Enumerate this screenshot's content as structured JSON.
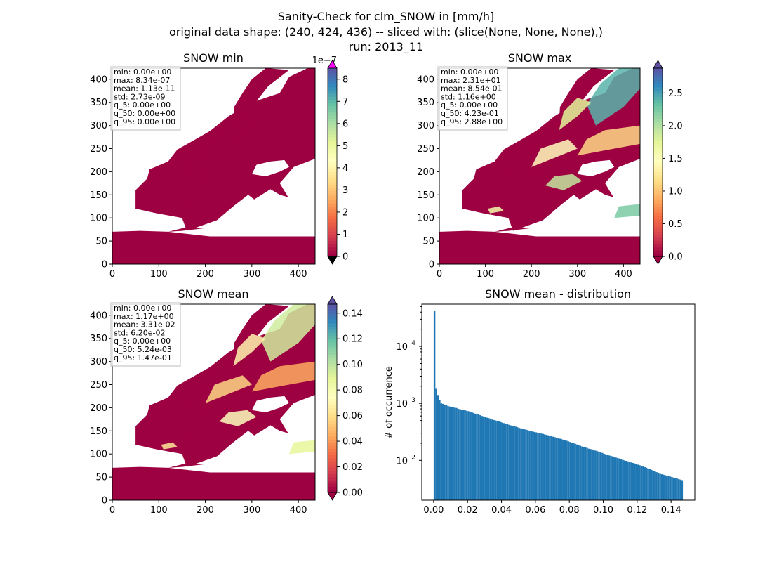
{
  "title_lines": [
    "Sanity-Check for clm_SNOW in [mm/h]",
    "original data shape: (240, 424, 436) -- sliced with: (slice(None, None, None),)",
    "run: 2013_11"
  ],
  "colors": {
    "land_low": "#9e0142",
    "spectral_r": [
      "#9e0142",
      "#d53e4f",
      "#f46d43",
      "#fdae61",
      "#fee08b",
      "#ffffbf",
      "#e6f598",
      "#abdda4",
      "#66c2a5",
      "#3288bd",
      "#5e4fa2"
    ],
    "hist_bar": "#1f77b4",
    "over_min": "#ff00ff"
  },
  "chart_data": [
    {
      "type": "heatmap",
      "title": "SNOW min",
      "xlim": [
        0,
        436
      ],
      "ylim": [
        0,
        424
      ],
      "xticks": [
        "0",
        "100",
        "200",
        "300",
        "400"
      ],
      "yticks": [
        "0",
        "50",
        "100",
        "150",
        "200",
        "250",
        "300",
        "350",
        "400"
      ],
      "colorbar": {
        "min": 0,
        "max": 8.5,
        "ticks": [
          "0",
          "1",
          "2",
          "3",
          "4",
          "5",
          "6",
          "7",
          "8"
        ],
        "offset_label": "1e−7",
        "extend": "both"
      },
      "stats": [
        "min: 0.00e+00",
        "max: 8.34e-07",
        "mean: 1.13e-11",
        "std: 2.73e-09",
        "q_5: 0.00e+00",
        "q_50: 0.00e+00",
        "q_95: 0.00e+00"
      ]
    },
    {
      "type": "heatmap",
      "title": "SNOW max",
      "xlim": [
        0,
        436
      ],
      "ylim": [
        0,
        424
      ],
      "xticks": [
        "0",
        "100",
        "200",
        "300",
        "400"
      ],
      "yticks": [
        "0",
        "50",
        "100",
        "150",
        "200",
        "250",
        "300",
        "350",
        "400"
      ],
      "colorbar": {
        "min": 0,
        "max": 2.88,
        "ticks": [
          "0.0",
          "0.5",
          "1.0",
          "1.5",
          "2.0",
          "2.5"
        ],
        "offset_label": "",
        "extend": "both"
      },
      "stats": [
        "min: 0.00e+00",
        "max: 2.31e+01",
        "mean: 8.54e-01",
        "std: 1.16e+00",
        "q_5: 0.00e+00",
        "q_50: 4.23e-01",
        "q_95: 2.88e+00"
      ]
    },
    {
      "type": "heatmap",
      "title": "SNOW mean",
      "xlim": [
        0,
        436
      ],
      "ylim": [
        0,
        424
      ],
      "xticks": [
        "0",
        "100",
        "200",
        "300",
        "400"
      ],
      "yticks": [
        "0",
        "50",
        "100",
        "150",
        "200",
        "250",
        "300",
        "350",
        "400"
      ],
      "colorbar": {
        "min": 0,
        "max": 0.147,
        "ticks": [
          "0.00",
          "0.02",
          "0.04",
          "0.06",
          "0.08",
          "0.10",
          "0.12",
          "0.14"
        ],
        "offset_label": "",
        "extend": "both"
      },
      "stats": [
        "min: 0.00e+00",
        "max: 1.17e+00",
        "mean: 3.31e-02",
        "std: 6.20e-02",
        "q_5: 0.00e+00",
        "q_50: 5.24e-03",
        "q_95: 1.47e-01"
      ]
    },
    {
      "type": "bar",
      "title": "SNOW mean - distribution",
      "ylabel": "# of occurrence",
      "xlabel": "",
      "yscale": "log",
      "xlim": [
        -0.007,
        0.154
      ],
      "ylim": [
        20,
        55000
      ],
      "xticks": [
        "0.00",
        "0.02",
        "0.04",
        "0.06",
        "0.08",
        "0.10",
        "0.12",
        "0.14"
      ],
      "yticks": [
        "10^2",
        "10^3",
        "10^4"
      ],
      "bin_range": [
        0.0,
        0.147
      ],
      "bins": 147,
      "counts": [
        42000,
        1800,
        1400,
        1150,
        1000,
        980,
        950,
        930,
        900,
        880,
        860,
        850,
        840,
        830,
        800,
        790,
        780,
        770,
        760,
        740,
        730,
        710,
        700,
        680,
        660,
        650,
        640,
        620,
        600,
        590,
        580,
        560,
        550,
        540,
        520,
        510,
        500,
        490,
        480,
        470,
        460,
        450,
        440,
        430,
        420,
        410,
        400,
        395,
        390,
        380,
        370,
        365,
        360,
        350,
        345,
        340,
        330,
        325,
        320,
        315,
        310,
        305,
        300,
        295,
        290,
        285,
        280,
        275,
        270,
        265,
        260,
        255,
        250,
        245,
        240,
        235,
        230,
        225,
        220,
        215,
        210,
        205,
        200,
        195,
        190,
        185,
        180,
        175,
        172,
        170,
        165,
        160,
        158,
        155,
        150,
        148,
        145,
        140,
        138,
        135,
        130,
        128,
        125,
        122,
        120,
        118,
        115,
        112,
        110,
        108,
        105,
        102,
        100,
        98,
        96,
        94,
        92,
        90,
        88,
        86,
        84,
        82,
        80,
        78,
        76,
        74,
        72,
        70,
        68,
        66,
        64,
        62,
        60,
        58,
        57,
        56,
        55,
        54,
        53,
        52,
        51,
        50,
        49,
        48,
        47,
        46,
        45
      ]
    }
  ]
}
